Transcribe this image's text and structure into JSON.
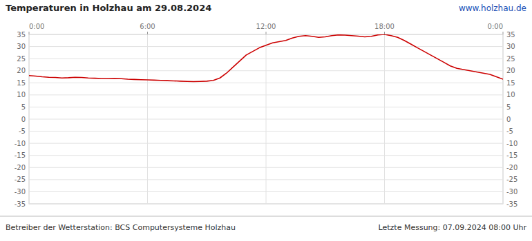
{
  "chart_data": {
    "type": "line",
    "title": "Temperaturen in Holzhau am 29.08.2024",
    "annotations": [
      "www.holzhau.de",
      "Betreiber der Wetterstation: BCS Computersysteme Holzhau",
      "Letzte Messung: 07.09.2024 08:00 Uhr"
    ],
    "color": "#cc0000",
    "grid": true,
    "xlim": [
      0,
      1440
    ],
    "xticks": [
      {
        "value": 0,
        "label": "0:00"
      },
      {
        "value": 360,
        "label": "6:00"
      },
      {
        "value": 720,
        "label": "12:00"
      },
      {
        "value": 1080,
        "label": "18:00"
      },
      {
        "value": 1440,
        "label": "0:00"
      }
    ],
    "ylim": [
      -35,
      35
    ],
    "yticks": [
      -35,
      -30,
      -25,
      -20,
      -15,
      -10,
      -5,
      0,
      5,
      10,
      15,
      20,
      25,
      30,
      35
    ],
    "x": [
      0,
      20,
      40,
      60,
      80,
      100,
      120,
      140,
      160,
      180,
      200,
      220,
      240,
      260,
      280,
      300,
      320,
      340,
      360,
      380,
      400,
      420,
      440,
      460,
      480,
      500,
      520,
      540,
      560,
      580,
      600,
      620,
      640,
      660,
      680,
      700,
      720,
      740,
      760,
      780,
      800,
      820,
      840,
      860,
      880,
      900,
      920,
      940,
      960,
      980,
      1000,
      1020,
      1040,
      1060,
      1080,
      1100,
      1120,
      1140,
      1160,
      1180,
      1200,
      1220,
      1240,
      1260,
      1280,
      1300,
      1320,
      1340,
      1360,
      1380,
      1400,
      1420,
      1440
    ],
    "values": [
      18.0,
      17.8,
      17.5,
      17.3,
      17.2,
      17.0,
      17.1,
      17.3,
      17.2,
      17.0,
      16.9,
      16.8,
      16.7,
      16.8,
      16.7,
      16.5,
      16.4,
      16.3,
      16.2,
      16.1,
      16.0,
      15.9,
      15.8,
      15.7,
      15.6,
      15.5,
      15.6,
      15.7,
      16.0,
      17.0,
      19.0,
      21.5,
      24.0,
      26.5,
      28.0,
      29.5,
      30.5,
      31.5,
      32.0,
      32.5,
      33.5,
      34.2,
      34.5,
      34.2,
      33.8,
      34.0,
      34.5,
      34.8,
      34.7,
      34.5,
      34.3,
      34.0,
      34.2,
      34.8,
      35.0,
      34.5,
      33.8,
      32.5,
      31.0,
      29.5,
      28.0,
      26.5,
      25.0,
      23.5,
      22.0,
      21.0,
      20.5,
      20.0,
      19.5,
      19.0,
      18.5,
      17.5,
      16.5
    ]
  }
}
